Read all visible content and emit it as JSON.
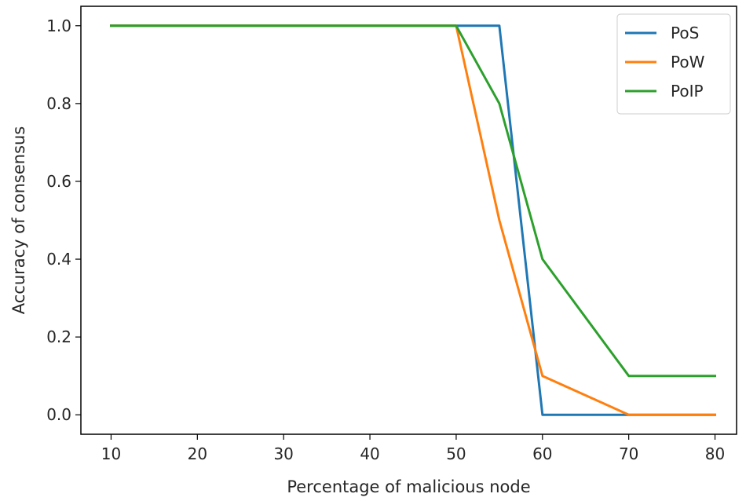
{
  "chart_data": {
    "type": "line",
    "title": "",
    "xlabel": "Percentage of malicious node",
    "ylabel": "Accuracy of consensus",
    "xlim": [
      6.5,
      82.5
    ],
    "ylim": [
      -0.05,
      1.05
    ],
    "xticks": [
      10,
      20,
      30,
      40,
      50,
      60,
      70,
      80
    ],
    "yticks": [
      0.0,
      0.2,
      0.4,
      0.6,
      0.8,
      1.0
    ],
    "ytick_labels": [
      "0.0",
      "0.2",
      "0.4",
      "0.6",
      "0.8",
      "1.0"
    ],
    "x": [
      10,
      20,
      30,
      40,
      50,
      55,
      60,
      70,
      80
    ],
    "series": [
      {
        "name": "PoS",
        "color": "#1f77b4",
        "values": [
          1.0,
          1.0,
          1.0,
          1.0,
          1.0,
          1.0,
          0.0,
          0.0,
          0.0
        ]
      },
      {
        "name": "PoW",
        "color": "#ff7f0e",
        "values": [
          1.0,
          1.0,
          1.0,
          1.0,
          1.0,
          0.5,
          0.1,
          0.0,
          0.0
        ]
      },
      {
        "name": "PoIP",
        "color": "#2ca02c",
        "values": [
          1.0,
          1.0,
          1.0,
          1.0,
          1.0,
          0.8,
          0.4,
          0.1,
          0.1
        ]
      }
    ],
    "legend_position": "top-right",
    "grid": false
  }
}
